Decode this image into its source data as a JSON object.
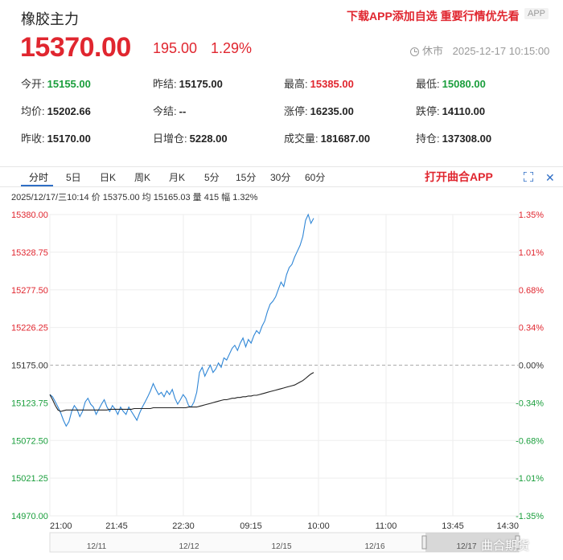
{
  "header": {
    "title": "橡胶主力",
    "promo": "下载APP添加自选 重要行情优先看",
    "app_badge": "APP",
    "price": "15370.00",
    "change": "195.00",
    "change_pct": "1.29%",
    "status": "休市",
    "datetime": "2025-12-17 10:15:00"
  },
  "stats": [
    {
      "label": "今开:",
      "value": "15155.00",
      "color": "green"
    },
    {
      "label": "昨结:",
      "value": "15175.00",
      "color": ""
    },
    {
      "label": "最高:",
      "value": "15385.00",
      "color": "red"
    },
    {
      "label": "最低:",
      "value": "15080.00",
      "color": "green"
    },
    {
      "label": "均价:",
      "value": "15202.66",
      "color": ""
    },
    {
      "label": "今结:",
      "value": "--",
      "color": ""
    },
    {
      "label": "涨停:",
      "value": "16235.00",
      "color": ""
    },
    {
      "label": "跌停:",
      "value": "14110.00",
      "color": ""
    },
    {
      "label": "昨收:",
      "value": "15170.00",
      "color": ""
    },
    {
      "label": "日增仓:",
      "value": "5228.00",
      "color": ""
    },
    {
      "label": "成交量:",
      "value": "181687.00",
      "color": ""
    },
    {
      "label": "持仓:",
      "value": "137308.00",
      "color": ""
    }
  ],
  "tabs": [
    "分时",
    "5日",
    "日K",
    "周K",
    "月K",
    "5分",
    "15分",
    "30分",
    "60分"
  ],
  "open_app": "打开曲合APP",
  "info_line": "2025/12/17/三10:14  价 15375.00  均 15165.03  量 415  幅 1.32%",
  "chart_data": {
    "type": "line",
    "y_labels": [
      "15380.00",
      "15328.75",
      "15277.50",
      "15226.25",
      "15175.00",
      "15123.75",
      "15072.50",
      "15021.25",
      "14970.00"
    ],
    "pct_labels": [
      "1.35%",
      "1.01%",
      "0.68%",
      "0.34%",
      "0.00%",
      "-0.34%",
      "-0.68%",
      "-1.01%",
      "-1.35%"
    ],
    "ylim": [
      14970,
      15380
    ],
    "x_labels": [
      "21:00",
      "21:45",
      "22:30",
      "09:15",
      "10:00",
      "11:00",
      "13:45",
      "14:30"
    ],
    "nav_labels": [
      "12/11",
      "12/12",
      "12/15",
      "12/16",
      "12/17"
    ],
    "series": [
      {
        "values": [
          15135,
          15132,
          15125,
          15118,
          15110,
          15100,
          15092,
          15098,
          15112,
          15120,
          15115,
          15105,
          15112,
          15125,
          15130,
          15122,
          15118,
          15108,
          15115,
          15122,
          15128,
          15118,
          15112,
          15120,
          15115,
          15108,
          15118,
          15112,
          15108,
          15118,
          15112,
          15106,
          15100,
          15110,
          15118,
          15125,
          15132,
          15140,
          15150,
          15142,
          15135,
          15138,
          15132,
          15140,
          15135,
          15142,
          15130,
          15122,
          15128,
          15135,
          15130,
          15120,
          15118,
          15125,
          15138,
          15165,
          15172,
          15160,
          15168,
          15175,
          15165,
          15170,
          15178,
          15172,
          15185,
          15182,
          15190,
          15198,
          15202,
          15195,
          15205,
          15212,
          15200,
          15210,
          15205,
          15215,
          15222,
          15218,
          15228,
          15235,
          15248,
          15258,
          15262,
          15268,
          15278,
          15288,
          15282,
          15298,
          15308,
          15312,
          15322,
          15330,
          15338,
          15350,
          15372,
          15380,
          15368,
          15375
        ]
      },
      {
        "values": [
          15135,
          15128,
          15120,
          15114,
          15112,
          15113,
          15114,
          15114,
          15114,
          15114,
          15114,
          15114,
          15114,
          15114,
          15114,
          15114,
          15114,
          15114,
          15114,
          15114,
          15114,
          15114,
          15115,
          15115,
          15115,
          15115,
          15115,
          15115,
          15115,
          15115,
          15115,
          15116,
          15116,
          15116,
          15116,
          15116,
          15116,
          15116,
          15117,
          15117,
          15117,
          15117,
          15117,
          15117,
          15117,
          15117,
          15117,
          15117,
          15117,
          15117,
          15117,
          15118,
          15118,
          15118,
          15118,
          15119,
          15120,
          15121,
          15122,
          15123,
          15124,
          15125,
          15126,
          15127,
          15128,
          15128,
          15129,
          15130,
          15130,
          15131,
          15131,
          15132,
          15132,
          15133,
          15133,
          15134,
          15134,
          15135,
          15136,
          15137,
          15138,
          15139,
          15140,
          15141,
          15142,
          15143,
          15144,
          15145,
          15146,
          15147,
          15148,
          15150,
          15152,
          15154,
          15157,
          15160,
          15163,
          15165
        ]
      }
    ]
  }
}
